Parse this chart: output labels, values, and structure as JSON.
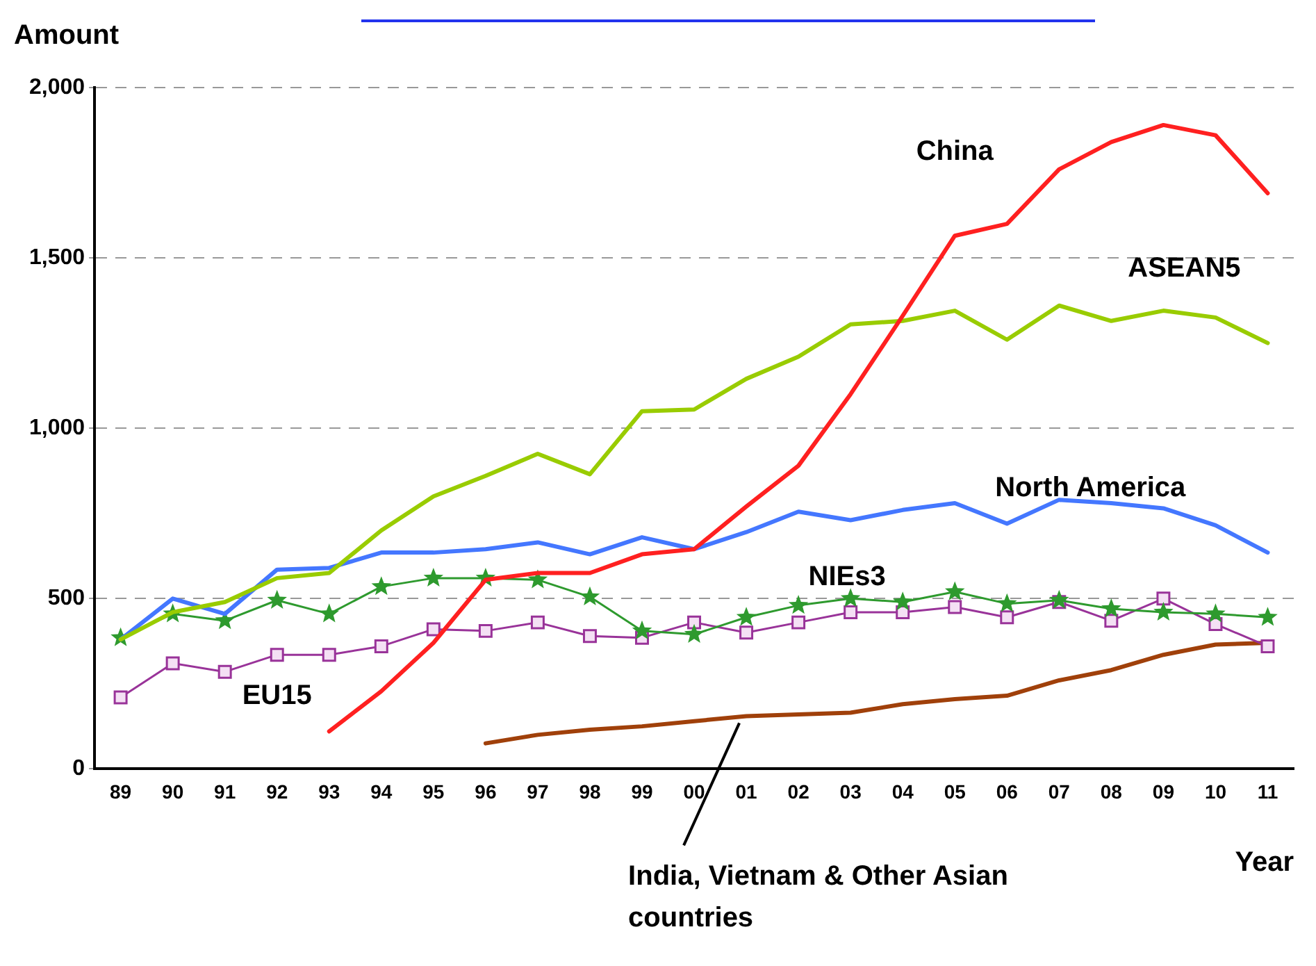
{
  "chart_data": {
    "type": "line",
    "xlabel": "Year",
    "ylabel": "Amount",
    "categories": [
      "89",
      "90",
      "91",
      "92",
      "93",
      "94",
      "95",
      "96",
      "97",
      "98",
      "99",
      "00",
      "01",
      "02",
      "03",
      "04",
      "05",
      "06",
      "07",
      "08",
      "09",
      "10",
      "11"
    ],
    "ylim": [
      0,
      2000
    ],
    "yticks": [
      0,
      500,
      {
        "value": 1000,
        "label": "1,000"
      },
      {
        "value": 1500,
        "label": "1,500"
      },
      {
        "value": 2000,
        "label": "2,000"
      }
    ],
    "grid": "y",
    "legend": false,
    "line_style": "solid",
    "series": [
      {
        "name": "China",
        "color": "#ff2020",
        "marker": "none",
        "values": [
          null,
          null,
          null,
          null,
          110,
          228,
          370,
          555,
          575,
          575,
          630,
          645,
          770,
          890,
          1100,
          1330,
          1565,
          1600,
          1760,
          1840,
          1890,
          1860,
          1690
        ]
      },
      {
        "name": "ASEAN5",
        "color": "#99cc00",
        "marker": "none",
        "values": [
          380,
          460,
          490,
          560,
          575,
          700,
          800,
          860,
          925,
          865,
          1050,
          1055,
          1145,
          1210,
          1305,
          1315,
          1345,
          1260,
          1360,
          1315,
          1345,
          1325,
          1250
        ]
      },
      {
        "name": "North America",
        "color": "#4477ff",
        "marker": "none",
        "values": [
          380,
          500,
          455,
          585,
          590,
          635,
          635,
          645,
          665,
          630,
          680,
          645,
          695,
          755,
          730,
          760,
          780,
          720,
          790,
          780,
          765,
          715,
          635
        ]
      },
      {
        "name": "NIEs3",
        "color": "#2e9a2e",
        "marker": "star",
        "values": [
          385,
          455,
          435,
          495,
          455,
          535,
          560,
          560,
          555,
          505,
          405,
          395,
          445,
          480,
          500,
          490,
          520,
          485,
          495,
          470,
          460,
          455,
          445
        ]
      },
      {
        "name": "EU15",
        "color": "#993399",
        "marker": "square",
        "values": [
          210,
          310,
          285,
          335,
          335,
          360,
          410,
          405,
          430,
          390,
          385,
          430,
          400,
          430,
          460,
          460,
          475,
          445,
          490,
          435,
          500,
          425,
          360
        ]
      },
      {
        "name": "India, Vietnam & Other Asian countries",
        "color": "#a0400a",
        "marker": "none",
        "values": [
          null,
          null,
          null,
          null,
          null,
          null,
          null,
          75,
          100,
          115,
          125,
          140,
          155,
          160,
          165,
          190,
          205,
          215,
          260,
          290,
          335,
          365,
          370
        ]
      }
    ]
  }
}
